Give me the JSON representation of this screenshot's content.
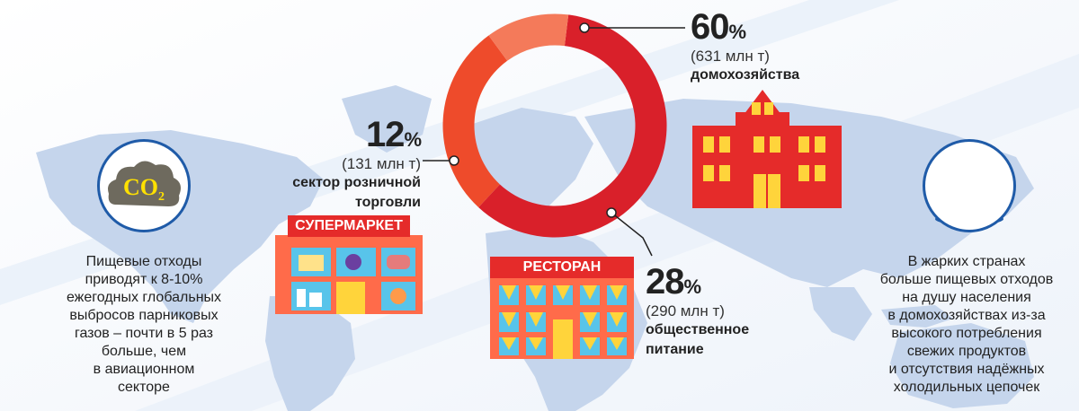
{
  "chart_data": {
    "type": "donut",
    "slices": [
      {
        "percent": "60",
        "amount": "(631 млн т)",
        "label": "домохозяйства",
        "value": 60,
        "color": "#d9202a"
      },
      {
        "percent": "28",
        "amount": "(290 млн т)",
        "label_lines": [
          "общественное",
          "питание"
        ],
        "value": 28,
        "color": "#ee4b2b"
      },
      {
        "percent": "12",
        "amount": "(131 млн т)",
        "label_lines": [
          "сектор розничной",
          "торговли"
        ],
        "value": 12,
        "color": "#f47a5a"
      }
    ],
    "percent_sign": "%"
  },
  "signs": {
    "supermarket": "СУПЕРМАРКЕТ",
    "restaurant": "РЕСТОРАН"
  },
  "co2_badge": {
    "text": "CO",
    "subscript": "2"
  },
  "left_text": [
    "Пищевые отходы",
    "приводят к 8-10%",
    "ежегодных глобальных",
    "выбросов парниковых",
    "газов – почти в 5 раз",
    "больше, чем",
    "в авиационном",
    "секторе"
  ],
  "right_text": [
    "В жарких странах",
    "больше пищевых отходов",
    "на душу населения",
    "в домохозяйствах из-за",
    "высокого потребления",
    "свежих продуктов",
    "и отсутствия надёжных",
    "холодильных цепочек"
  ],
  "colors": {
    "map": "#c5d5ec",
    "house": "#e52b2a",
    "accent_blue": "#1f5ba8"
  }
}
